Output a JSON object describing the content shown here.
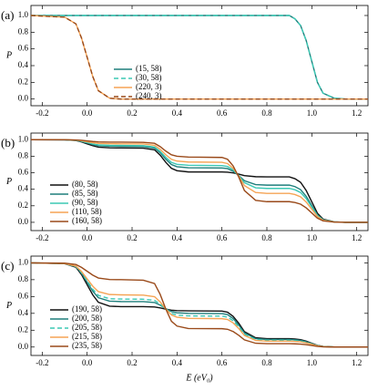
{
  "chart_data": [
    {
      "type": "line",
      "panel_label": "(a)",
      "y_label": "P",
      "legend": "lower center",
      "xlim": [
        -0.25,
        1.25
      ],
      "ylim": [
        -0.08,
        1.12
      ],
      "xticks": [
        -0.2,
        {
          "value": 0,
          "label": "0.0"
        },
        0.2,
        0.4,
        0.6,
        0.8,
        {
          "value": 1,
          "label": "1.0"
        },
        1.2
      ],
      "yticks": [
        {
          "value": 0,
          "label": "0.0"
        },
        0.2,
        0.4,
        0.6,
        0.8,
        {
          "value": 1,
          "label": "1.0"
        }
      ],
      "x": [
        -0.25,
        -0.1,
        -0.05,
        -0.025,
        0,
        0.025,
        0.05,
        0.1,
        0.15,
        0.25,
        0.3,
        0.325,
        0.35,
        0.375,
        0.4,
        0.45,
        0.6,
        0.625,
        0.65,
        0.675,
        0.7,
        0.75,
        0.8,
        0.9,
        0.925,
        0.95,
        0.975,
        1.0,
        1.025,
        1.05,
        1.1,
        1.15,
        1.25
      ],
      "series": [
        {
          "name": "(15, 58)",
          "color": "#1f7f7c",
          "dash": false,
          "values": [
            1,
            1,
            1,
            1,
            1,
            1,
            1,
            1,
            1,
            1,
            1,
            1,
            1,
            1,
            1,
            1,
            1,
            1,
            1,
            1,
            1,
            1,
            1,
            1,
            0.96,
            0.88,
            0.7,
            0.45,
            0.2,
            0.07,
            0.01,
            0,
            0
          ]
        },
        {
          "name": "(30, 58)",
          "color": "#3cc8b4",
          "dash": true,
          "values": [
            1,
            1,
            1,
            1,
            1,
            1,
            1,
            1,
            1,
            1,
            1,
            1,
            1,
            1,
            1,
            1,
            1,
            1,
            1,
            1,
            1,
            1,
            1,
            1,
            0.96,
            0.88,
            0.7,
            0.45,
            0.2,
            0.07,
            0.01,
            0,
            0
          ]
        },
        {
          "name": "(220, 3)",
          "color": "#f5a455",
          "dash": false,
          "values": [
            1,
            0.98,
            0.9,
            0.73,
            0.5,
            0.27,
            0.1,
            0.01,
            0,
            0,
            0,
            0,
            0,
            0,
            0,
            0,
            0,
            0,
            0,
            0,
            0,
            0,
            0,
            0,
            0,
            0,
            0,
            0,
            0,
            0,
            0,
            0,
            0
          ]
        },
        {
          "name": "(240, 3)",
          "color": "#9a4a1a",
          "dash": true,
          "values": [
            1,
            0.98,
            0.9,
            0.73,
            0.5,
            0.27,
            0.1,
            0.01,
            0,
            0,
            0,
            0,
            0,
            0,
            0,
            0,
            0,
            0,
            0,
            0,
            0,
            0,
            0,
            0,
            0,
            0,
            0,
            0,
            0,
            0,
            0,
            0,
            0
          ]
        }
      ]
    },
    {
      "type": "line",
      "panel_label": "(b)",
      "y_label": "P",
      "legend": "lower left",
      "xlim": [
        -0.25,
        1.25
      ],
      "ylim": [
        -0.1,
        1.08
      ],
      "xticks": [
        -0.2,
        {
          "value": 0,
          "label": "0.0"
        },
        0.2,
        0.4,
        0.6,
        0.8,
        {
          "value": 1,
          "label": "1.0"
        },
        1.2
      ],
      "yticks": [
        {
          "value": 0,
          "label": "0.0"
        },
        0.2,
        0.4,
        0.6,
        0.8,
        {
          "value": 1,
          "label": "1.0"
        }
      ],
      "x": [
        -0.25,
        -0.1,
        -0.05,
        -0.025,
        0,
        0.025,
        0.05,
        0.1,
        0.15,
        0.25,
        0.3,
        0.325,
        0.35,
        0.375,
        0.4,
        0.45,
        0.6,
        0.625,
        0.65,
        0.675,
        0.7,
        0.75,
        0.8,
        0.9,
        0.925,
        0.95,
        0.975,
        1.0,
        1.025,
        1.05,
        1.1,
        1.15,
        1.25
      ],
      "series": [
        {
          "name": "(80, 58)",
          "color": "#111111",
          "dash": false,
          "values": [
            1,
            0.998,
            0.99,
            0.973,
            0.95,
            0.927,
            0.91,
            0.901,
            0.9,
            0.897,
            0.877,
            0.813,
            0.726,
            0.654,
            0.625,
            0.61,
            0.609,
            0.607,
            0.598,
            0.583,
            0.565,
            0.552,
            0.55,
            0.55,
            0.528,
            0.484,
            0.385,
            0.248,
            0.11,
            0.039,
            0.006,
            0,
            0
          ]
        },
        {
          "name": "(85, 58)",
          "color": "#1f7f7c",
          "dash": false,
          "values": [
            1,
            0.998,
            0.992,
            0.978,
            0.96,
            0.942,
            0.928,
            0.921,
            0.92,
            0.917,
            0.899,
            0.842,
            0.764,
            0.699,
            0.673,
            0.66,
            0.658,
            0.65,
            0.618,
            0.566,
            0.503,
            0.456,
            0.45,
            0.45,
            0.432,
            0.396,
            0.315,
            0.203,
            0.09,
            0.032,
            0.005,
            0,
            0
          ]
        },
        {
          "name": "(90, 58)",
          "color": "#3cc8b4",
          "dash": false,
          "values": [
            1,
            0.999,
            0.993,
            0.981,
            0.965,
            0.949,
            0.937,
            0.931,
            0.93,
            0.928,
            0.911,
            0.858,
            0.786,
            0.726,
            0.702,
            0.69,
            0.687,
            0.676,
            0.634,
            0.564,
            0.48,
            0.418,
            0.41,
            0.41,
            0.394,
            0.361,
            0.287,
            0.185,
            0.082,
            0.029,
            0.004,
            0,
            0
          ]
        },
        {
          "name": "(110, 58)",
          "color": "#f5a455",
          "dash": false,
          "values": [
            1,
            0.999,
            0.995,
            0.987,
            0.975,
            0.964,
            0.955,
            0.951,
            0.95,
            0.948,
            0.932,
            0.884,
            0.818,
            0.763,
            0.741,
            0.73,
            0.726,
            0.711,
            0.654,
            0.559,
            0.445,
            0.361,
            0.35,
            0.35,
            0.336,
            0.308,
            0.245,
            0.158,
            0.07,
            0.025,
            0.004,
            0,
            0
          ]
        },
        {
          "name": "(160, 58)",
          "color": "#9a4a1a",
          "dash": false,
          "values": [
            1,
            0.999,
            0.997,
            0.992,
            0.985,
            0.978,
            0.973,
            0.97,
            0.97,
            0.968,
            0.956,
            0.916,
            0.862,
            0.817,
            0.799,
            0.79,
            0.785,
            0.763,
            0.682,
            0.547,
            0.385,
            0.266,
            0.25,
            0.25,
            0.24,
            0.22,
            0.175,
            0.113,
            0.05,
            0.018,
            0.003,
            0,
            0
          ]
        }
      ]
    },
    {
      "type": "line",
      "panel_label": "(c)",
      "y_label": "P",
      "x_label": "E (eV₀)",
      "legend": "lower left",
      "xlim": [
        -0.25,
        1.25
      ],
      "ylim": [
        -0.1,
        1.08
      ],
      "xticks": [
        -0.2,
        {
          "value": 0,
          "label": "0.0"
        },
        0.2,
        0.4,
        0.6,
        0.8,
        {
          "value": 1,
          "label": "1.0"
        },
        1.2
      ],
      "yticks": [
        {
          "value": 0,
          "label": "0.0"
        },
        0.2,
        0.4,
        0.6,
        0.8,
        {
          "value": 1,
          "label": "1.0"
        }
      ],
      "x": [
        -0.25,
        -0.1,
        -0.05,
        -0.025,
        0,
        0.025,
        0.05,
        0.1,
        0.15,
        0.25,
        0.3,
        0.325,
        0.35,
        0.375,
        0.4,
        0.45,
        0.6,
        0.625,
        0.65,
        0.675,
        0.7,
        0.75,
        0.8,
        0.9,
        0.925,
        0.95,
        0.975,
        1.0,
        1.025,
        1.05,
        1.1,
        1.15,
        1.25
      ],
      "series": [
        {
          "name": "(190, 58)",
          "color": "#111111",
          "dash": false,
          "values": [
            1,
            0.99,
            0.948,
            0.86,
            0.74,
            0.62,
            0.532,
            0.485,
            0.48,
            0.48,
            0.476,
            0.465,
            0.45,
            0.438,
            0.433,
            0.43,
            0.427,
            0.414,
            0.364,
            0.282,
            0.183,
            0.11,
            0.1,
            0.1,
            0.096,
            0.088,
            0.07,
            0.045,
            0.02,
            0.007,
            0.001,
            0,
            0
          ]
        },
        {
          "name": "(200, 58)",
          "color": "#1f7f7c",
          "dash": false,
          "values": [
            1,
            0.991,
            0.954,
            0.876,
            0.77,
            0.664,
            0.586,
            0.545,
            0.54,
            0.539,
            0.529,
            0.498,
            0.456,
            0.421,
            0.407,
            0.4,
            0.397,
            0.385,
            0.338,
            0.26,
            0.168,
            0.099,
            0.09,
            0.09,
            0.086,
            0.079,
            0.063,
            0.041,
            0.018,
            0.006,
            0.001,
            0,
            0
          ]
        },
        {
          "name": "(205, 58)",
          "color": "#3cc8b4",
          "dash": true,
          "values": [
            1,
            0.991,
            0.957,
            0.884,
            0.785,
            0.686,
            0.613,
            0.574,
            0.57,
            0.568,
            0.554,
            0.51,
            0.45,
            0.4,
            0.38,
            0.37,
            0.367,
            0.356,
            0.312,
            0.24,
            0.153,
            0.089,
            0.08,
            0.08,
            0.077,
            0.07,
            0.056,
            0.036,
            0.016,
            0.006,
            0.001,
            0,
            0
          ]
        },
        {
          "name": "(215, 58)",
          "color": "#f5a455",
          "dash": false,
          "values": [
            1,
            0.992,
            0.962,
            0.897,
            0.81,
            0.723,
            0.658,
            0.624,
            0.62,
            0.617,
            0.598,
            0.536,
            0.452,
            0.382,
            0.354,
            0.34,
            0.337,
            0.327,
            0.286,
            0.219,
            0.138,
            0.078,
            0.07,
            0.07,
            0.067,
            0.062,
            0.049,
            0.032,
            0.014,
            0.005,
            0.001,
            0,
            0
          ]
        },
        {
          "name": "(235, 58)",
          "color": "#9a4a1a",
          "dash": false,
          "values": [
            1,
            0.996,
            0.98,
            0.946,
            0.9,
            0.854,
            0.82,
            0.802,
            0.8,
            0.794,
            0.754,
            0.626,
            0.452,
            0.307,
            0.249,
            0.22,
            0.218,
            0.211,
            0.184,
            0.139,
            0.085,
            0.045,
            0.04,
            0.04,
            0.038,
            0.035,
            0.028,
            0.018,
            0.008,
            0.003,
            0,
            0,
            0
          ]
        }
      ]
    }
  ]
}
